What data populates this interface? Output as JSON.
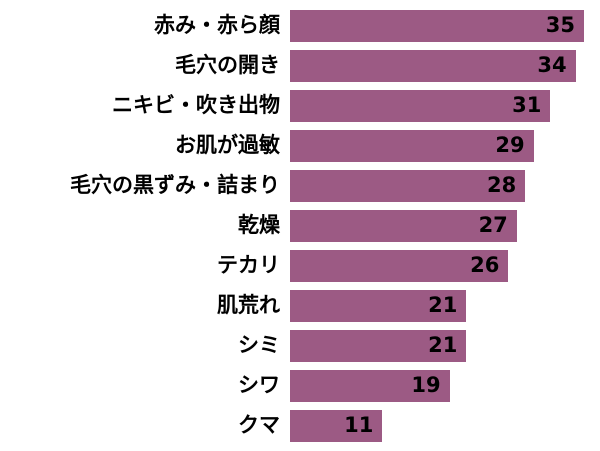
{
  "chart_data": {
    "type": "bar",
    "orientation": "horizontal",
    "title": "",
    "xlabel": "",
    "ylabel": "",
    "categories": [
      "赤み・赤ら顔",
      "毛穴の開き",
      "ニキビ・吹き出物",
      "お肌が過敏",
      "毛穴の黒ずみ・詰まり",
      "乾燥",
      "テカリ",
      "肌荒れ",
      "シミ",
      "シワ",
      "クマ"
    ],
    "values": [
      35,
      34,
      31,
      29,
      28,
      27,
      26,
      21,
      21,
      19,
      11
    ],
    "xlim": [
      0,
      35
    ],
    "grid": false,
    "legend": false,
    "bar_color": "#9C5A84",
    "label_color": "#000000",
    "value_label_color": "#000000",
    "value_label_position": "inside-end",
    "background_color": "#ffffff"
  }
}
